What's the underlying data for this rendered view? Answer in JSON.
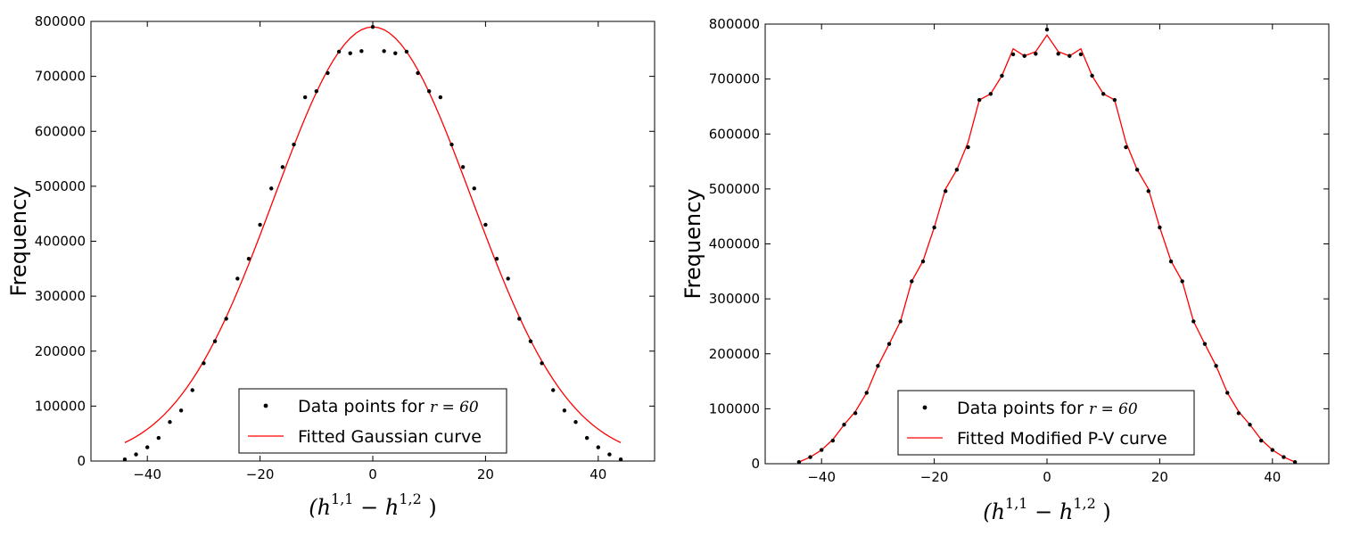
{
  "chart_data": [
    {
      "type": "scatter",
      "x": [
        -44,
        -42,
        -40,
        -38,
        -36,
        -34,
        -32,
        -30,
        -28,
        -26,
        -24,
        -22,
        -20,
        -18,
        -16,
        -14,
        -12,
        -10,
        -8,
        -6,
        -4,
        -2,
        0,
        2,
        4,
        6,
        8,
        10,
        12,
        14,
        16,
        18,
        20,
        22,
        24,
        26,
        28,
        30,
        32,
        34,
        36,
        38,
        40,
        42,
        44
      ],
      "series": [
        {
          "name": "Data points for",
          "name_math": "r = 60",
          "kind": "points",
          "color": "#000000",
          "values": [
            3000,
            12000,
            25000,
            42000,
            71000,
            92000,
            129000,
            178000,
            218000,
            259000,
            332000,
            368000,
            430000,
            496000,
            535000,
            576000,
            662000,
            673000,
            706000,
            745000,
            742000,
            746000,
            790000,
            746000,
            742000,
            745000,
            706000,
            673000,
            662000,
            576000,
            535000,
            496000,
            430000,
            368000,
            332000,
            259000,
            218000,
            178000,
            129000,
            92000,
            71000,
            42000,
            25000,
            12000,
            3000
          ]
        },
        {
          "name": "Fitted Gaussian curve",
          "kind": "line",
          "color": "#ff0000",
          "curve": "gaussian",
          "amplitude": 790000,
          "sigma": 17.5
        }
      ],
      "xlim": [
        -50,
        50
      ],
      "ylim": [
        0,
        800000
      ],
      "xticks": [
        -40,
        -20,
        0,
        20,
        40
      ],
      "yticks": [
        0,
        100000,
        200000,
        300000,
        400000,
        500000,
        600000,
        700000,
        800000
      ],
      "xtick_labels": [
        "−40",
        "−20",
        "0",
        "20",
        "40"
      ],
      "ytick_labels": [
        "0",
        "100000",
        "200000",
        "300000",
        "400000",
        "500000",
        "600000",
        "700000",
        "800000"
      ],
      "xlabel": "(h^{1,1} − h^{1,2})",
      "xlabel_parts": [
        "(",
        "h",
        "1,1",
        " −",
        "h",
        "1,2",
        " )"
      ],
      "ylabel": "Frequency",
      "legend": "lower-center"
    },
    {
      "type": "scatter",
      "x": [
        -44,
        -42,
        -40,
        -38,
        -36,
        -34,
        -32,
        -30,
        -28,
        -26,
        -24,
        -22,
        -20,
        -18,
        -16,
        -14,
        -12,
        -10,
        -8,
        -6,
        -4,
        -2,
        0,
        2,
        4,
        6,
        8,
        10,
        12,
        14,
        16,
        18,
        20,
        22,
        24,
        26,
        28,
        30,
        32,
        34,
        36,
        38,
        40,
        42,
        44
      ],
      "series": [
        {
          "name": "Data points for",
          "name_math": "r = 60",
          "kind": "points",
          "color": "#000000",
          "values": [
            3000,
            12000,
            25000,
            42000,
            71000,
            92000,
            129000,
            178000,
            218000,
            259000,
            332000,
            368000,
            430000,
            496000,
            535000,
            576000,
            662000,
            673000,
            706000,
            745000,
            742000,
            746000,
            790000,
            746000,
            742000,
            745000,
            706000,
            673000,
            662000,
            576000,
            535000,
            496000,
            430000,
            368000,
            332000,
            259000,
            218000,
            178000,
            129000,
            92000,
            71000,
            42000,
            25000,
            12000,
            3000
          ]
        },
        {
          "name": "Fitted Modified P-V curve",
          "kind": "line",
          "color": "#ff0000",
          "values": [
            3000,
            12000,
            25000,
            44000,
            71000,
            95000,
            129000,
            178000,
            218000,
            259000,
            332000,
            369000,
            430000,
            500000,
            535000,
            585000,
            662000,
            673000,
            706000,
            755000,
            742000,
            750000,
            780000,
            750000,
            742000,
            755000,
            706000,
            673000,
            662000,
            585000,
            535000,
            500000,
            430000,
            369000,
            332000,
            259000,
            218000,
            178000,
            129000,
            95000,
            71000,
            44000,
            25000,
            12000,
            3000
          ]
        }
      ],
      "xlim": [
        -50,
        50
      ],
      "ylim": [
        0,
        800000
      ],
      "xticks": [
        -40,
        -20,
        0,
        20,
        40
      ],
      "yticks": [
        0,
        100000,
        200000,
        300000,
        400000,
        500000,
        600000,
        700000,
        800000
      ],
      "xtick_labels": [
        "−40",
        "−20",
        "0",
        "20",
        "40"
      ],
      "ytick_labels": [
        "0",
        "100000",
        "200000",
        "300000",
        "400000",
        "500000",
        "600000",
        "700000",
        "800000"
      ],
      "xlabel": "(h^{1,1} − h^{1,2})",
      "xlabel_parts": [
        "(",
        "h",
        "1,1",
        " −",
        "h",
        "1,2",
        " )"
      ],
      "ylabel": "Frequency",
      "legend": "lower-center"
    }
  ]
}
